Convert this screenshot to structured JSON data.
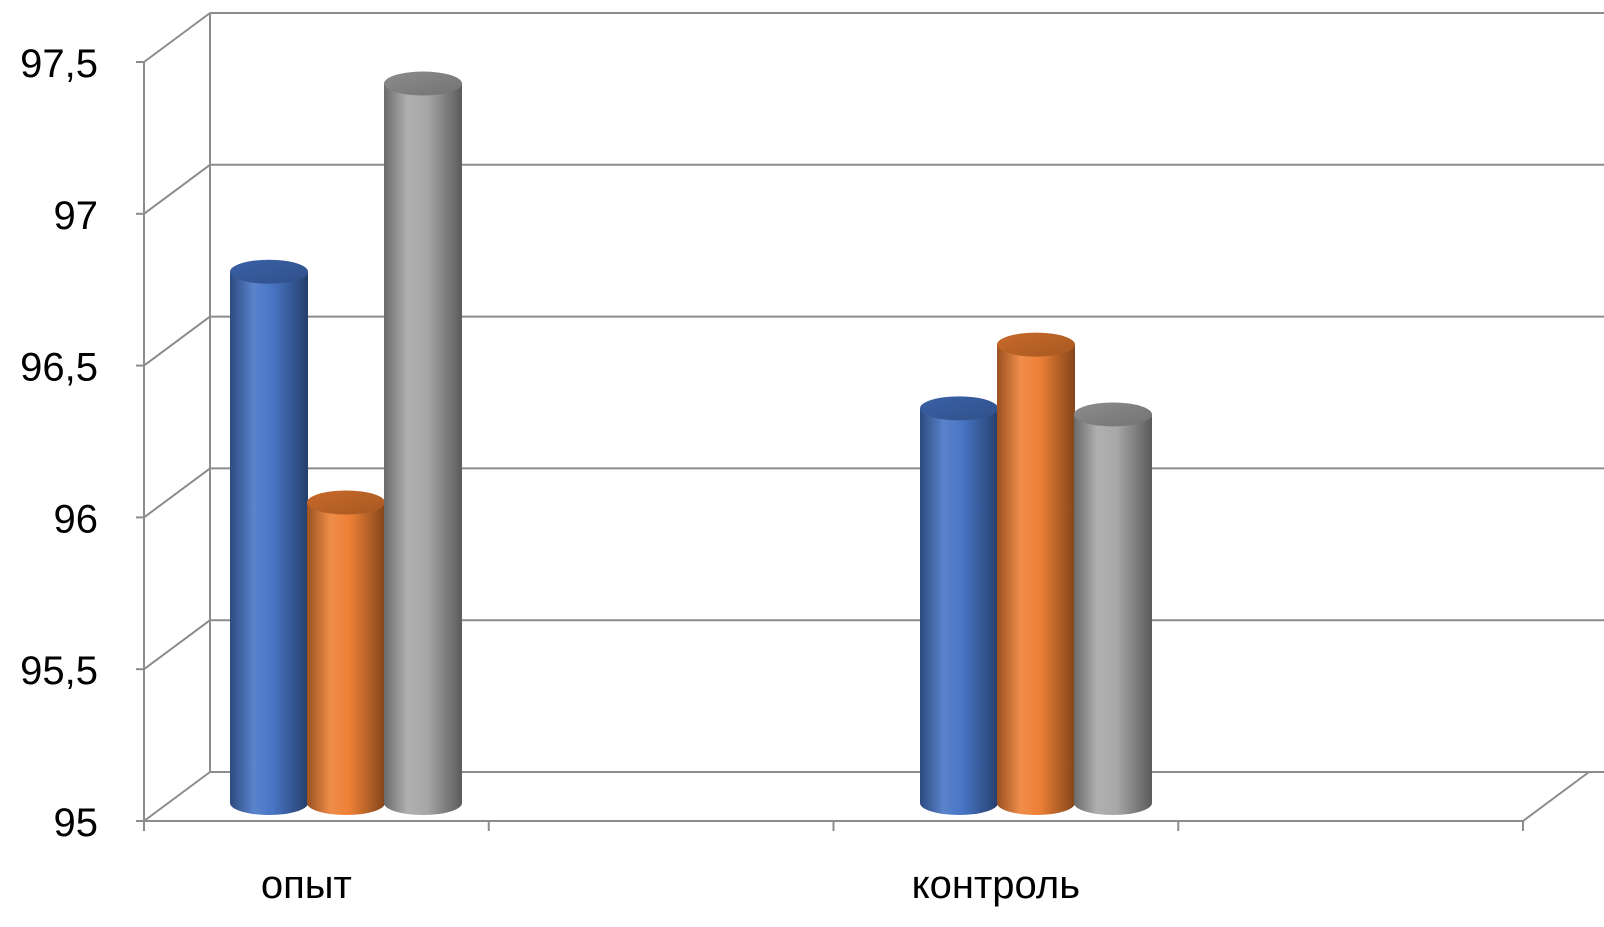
{
  "chart_data": {
    "type": "bar",
    "style": "3d-cylinder",
    "categories": [
      "опыт",
      "контроль"
    ],
    "series": [
      {
        "values": [
          96.73,
          96.28
        ],
        "color": "#4472C4"
      },
      {
        "values": [
          95.97,
          96.49
        ],
        "color": "#ED7D31"
      },
      {
        "values": [
          97.35,
          96.26
        ],
        "color": "#A5A5A5"
      }
    ],
    "ylim": [
      95,
      97.5
    ],
    "yticks": [
      95,
      95.5,
      96,
      96.5,
      97,
      97.5
    ],
    "ytick_labels": [
      "95",
      "95,5",
      "96",
      "96,5",
      "97",
      "97,5"
    ],
    "grid": true,
    "legend": "none",
    "title": "",
    "xlabel": "",
    "ylabel": ""
  }
}
